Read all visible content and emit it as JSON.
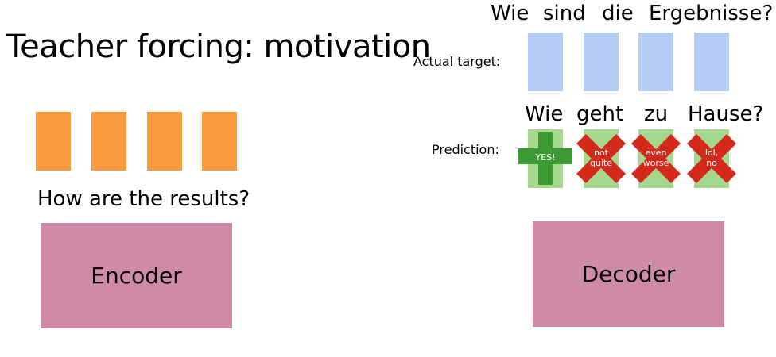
{
  "title": "Teacher forcing: motivation",
  "encoder": {
    "label": "Encoder",
    "input_text": "How are the results?",
    "block_color": "#fb9a3e",
    "box_color": "#cf8aa8"
  },
  "decoder": {
    "label": "Decoder",
    "box_color": "#cf8aa8",
    "actual_target": {
      "label": "Actual target:",
      "words": [
        "Wie",
        "sind",
        "die",
        "Ergebnisse?"
      ],
      "block_color": "#b4cdf5"
    },
    "prediction": {
      "label": "Prediction:",
      "words": [
        "Wie",
        "geht",
        "zu",
        "Hause?"
      ],
      "cell_color": "#a6d98f",
      "items": [
        {
          "mark": "check-plus",
          "text": "YES!",
          "mark_color": "#3b9a34"
        },
        {
          "mark": "cross",
          "text": "not\nquite",
          "mark_color": "#d42a1c"
        },
        {
          "mark": "cross",
          "text": "even\nworse",
          "mark_color": "#d42a1c"
        },
        {
          "mark": "cross",
          "text": "lol,\nno",
          "mark_color": "#d42a1c"
        }
      ]
    }
  }
}
